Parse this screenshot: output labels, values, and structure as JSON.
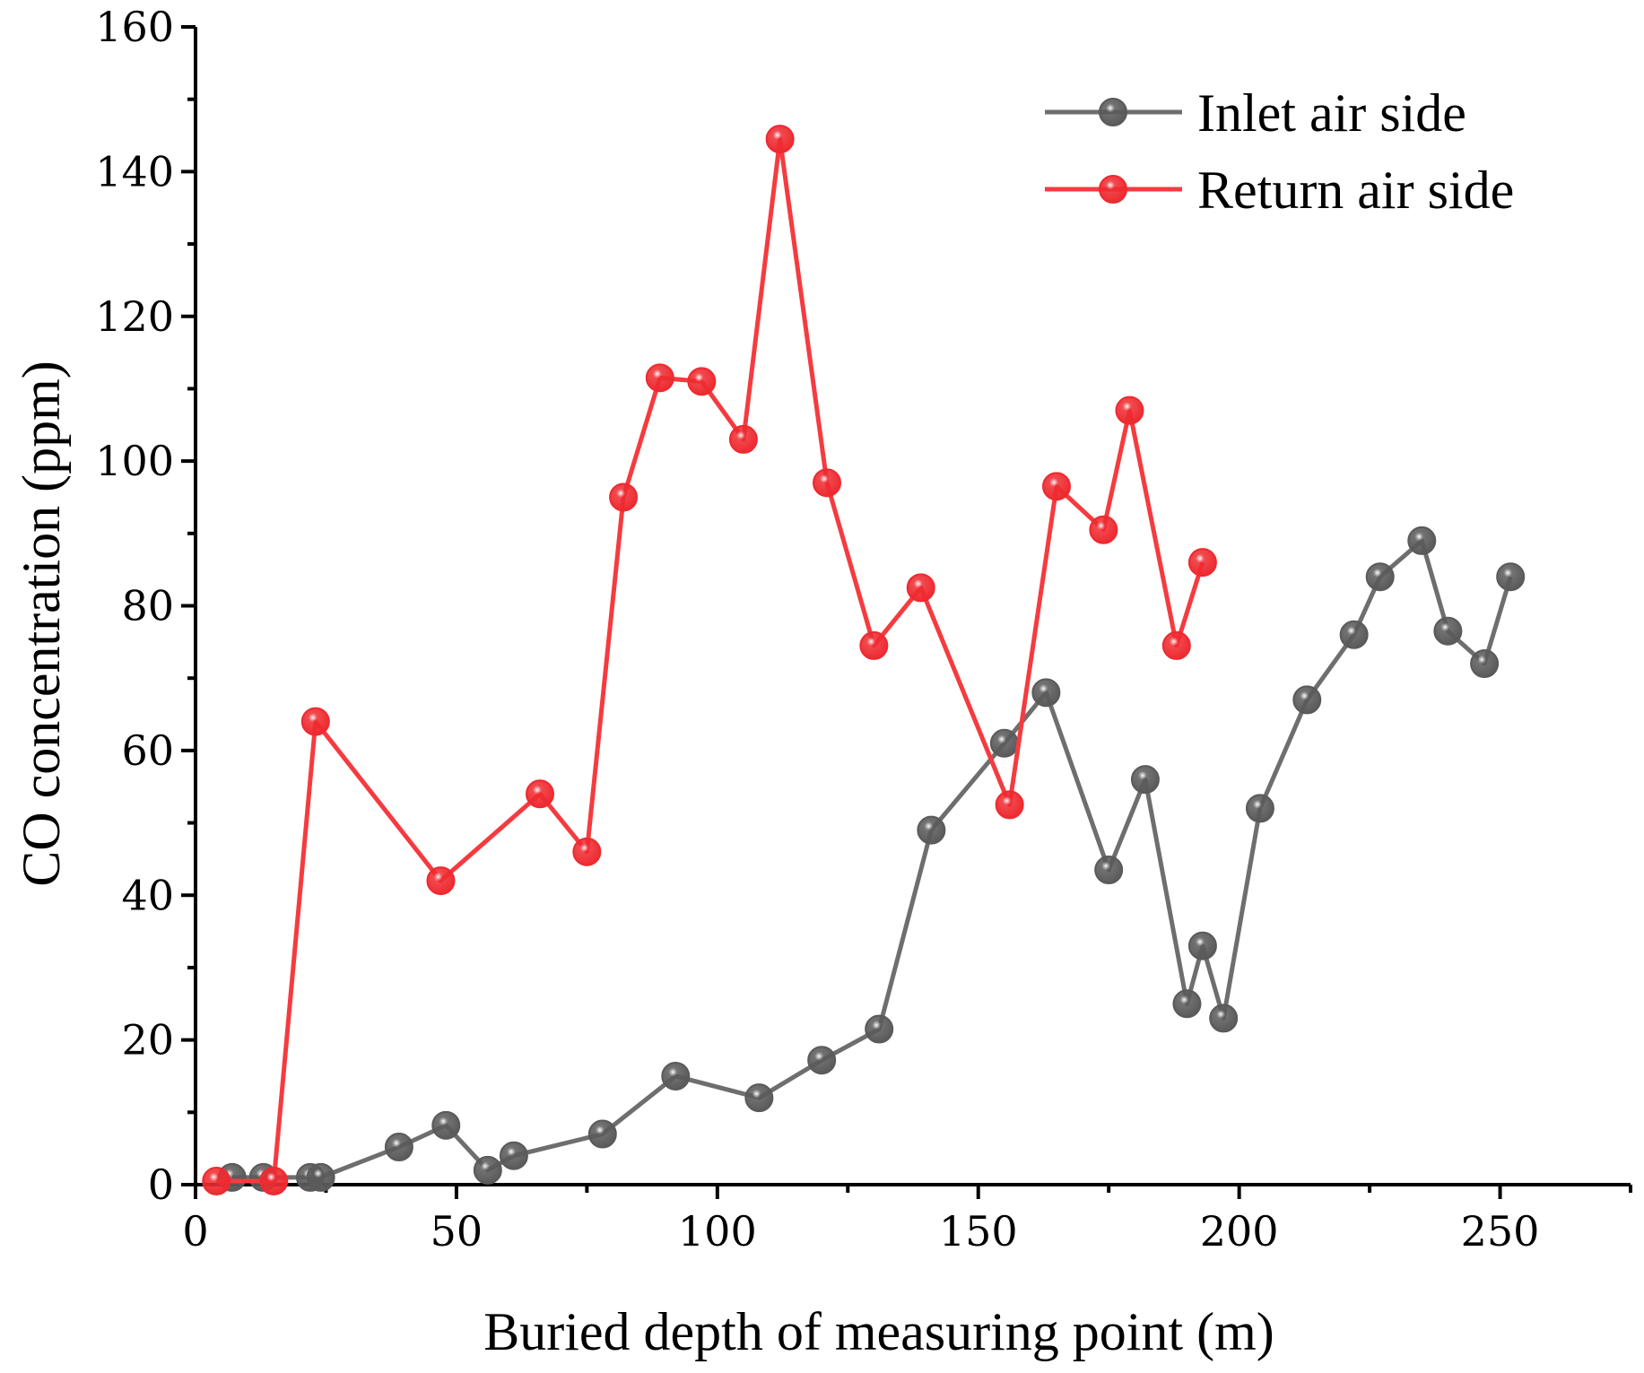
{
  "chart_data": {
    "type": "line",
    "title": "",
    "xlabel": "Buried depth of measuring point (m)",
    "ylabel": "CO concentration (ppm)",
    "xlim": [
      0,
      275
    ],
    "ylim": [
      0,
      160
    ],
    "xticks": [
      0,
      50,
      100,
      150,
      200,
      250
    ],
    "yticks": [
      0,
      20,
      40,
      60,
      80,
      100,
      120,
      140,
      160
    ],
    "grid": false,
    "legend_position": "top-right",
    "series": [
      {
        "name": "Inlet air side",
        "color": "#6e6e6e",
        "marker_color": "#5a5a5a",
        "x": [
          7,
          13,
          22,
          24,
          39,
          48,
          56,
          61,
          78,
          92,
          108,
          120,
          131,
          141,
          155,
          163,
          175,
          182,
          190,
          193,
          197,
          204,
          213,
          222,
          227,
          235,
          240,
          247,
          252
        ],
        "y": [
          1,
          1,
          1,
          1,
          5.2,
          8.2,
          2,
          4,
          7,
          15,
          12,
          17.2,
          21.5,
          49,
          61,
          68,
          43.5,
          56,
          25,
          33,
          23,
          52,
          67,
          76,
          84,
          89,
          76.5,
          72,
          84
        ]
      },
      {
        "name": "Return air side",
        "color": "#f53b3f",
        "marker_color": "#ee2a30",
        "x": [
          4,
          15,
          23,
          47,
          66,
          75,
          82,
          89,
          97,
          105,
          112,
          121,
          130,
          139,
          156,
          165,
          174,
          179,
          188,
          193
        ],
        "y": [
          0.5,
          0.5,
          64,
          42,
          54,
          46,
          95,
          111.5,
          111,
          103,
          144.5,
          97,
          74.5,
          82.5,
          52.5,
          96.5,
          90.5,
          107,
          74.5,
          86
        ]
      }
    ]
  }
}
